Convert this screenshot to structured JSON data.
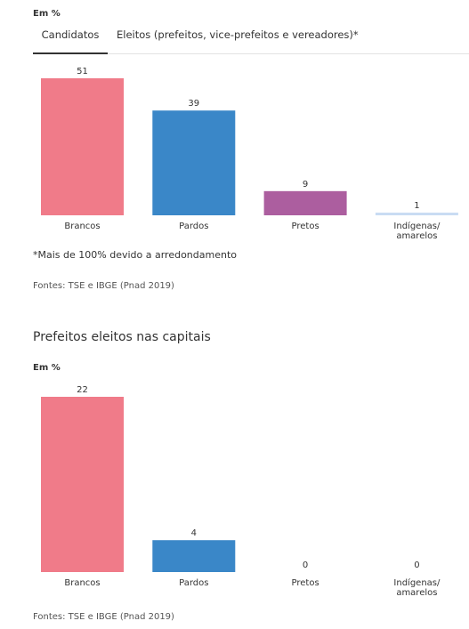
{
  "top": {
    "unit": "Em %",
    "tabs": [
      {
        "label": "Candidatos",
        "active": true
      },
      {
        "label": "Eleitos (prefeitos, vice-prefeitos e vereadores)*",
        "active": false
      }
    ],
    "note": "*Mais de 100% devido a arredondamento",
    "source": "Fontes: TSE e IBGE (Pnad 2019)"
  },
  "bottom": {
    "title": "Prefeitos eleitos nas capitais",
    "unit": "Em %",
    "source": "Fontes: TSE e IBGE (Pnad 2019)"
  },
  "colors": {
    "Brancos": "#f07b89",
    "Pardos": "#3a87c8",
    "Pretos": "#ac5e9f",
    "Indígenas/amarelos": "#c9dcf3"
  },
  "chart_data": [
    {
      "type": "bar",
      "categories": [
        "Brancos",
        "Pardos",
        "Pretos",
        "Indígenas/ amarelos"
      ],
      "values": [
        51,
        39,
        9,
        1
      ],
      "ylim": [
        0,
        51
      ]
    },
    {
      "type": "bar",
      "categories": [
        "Brancos",
        "Pardos",
        "Pretos",
        "Indígenas/ amarelos"
      ],
      "values": [
        22,
        4,
        0,
        0
      ],
      "ylim": [
        0,
        22
      ]
    }
  ]
}
